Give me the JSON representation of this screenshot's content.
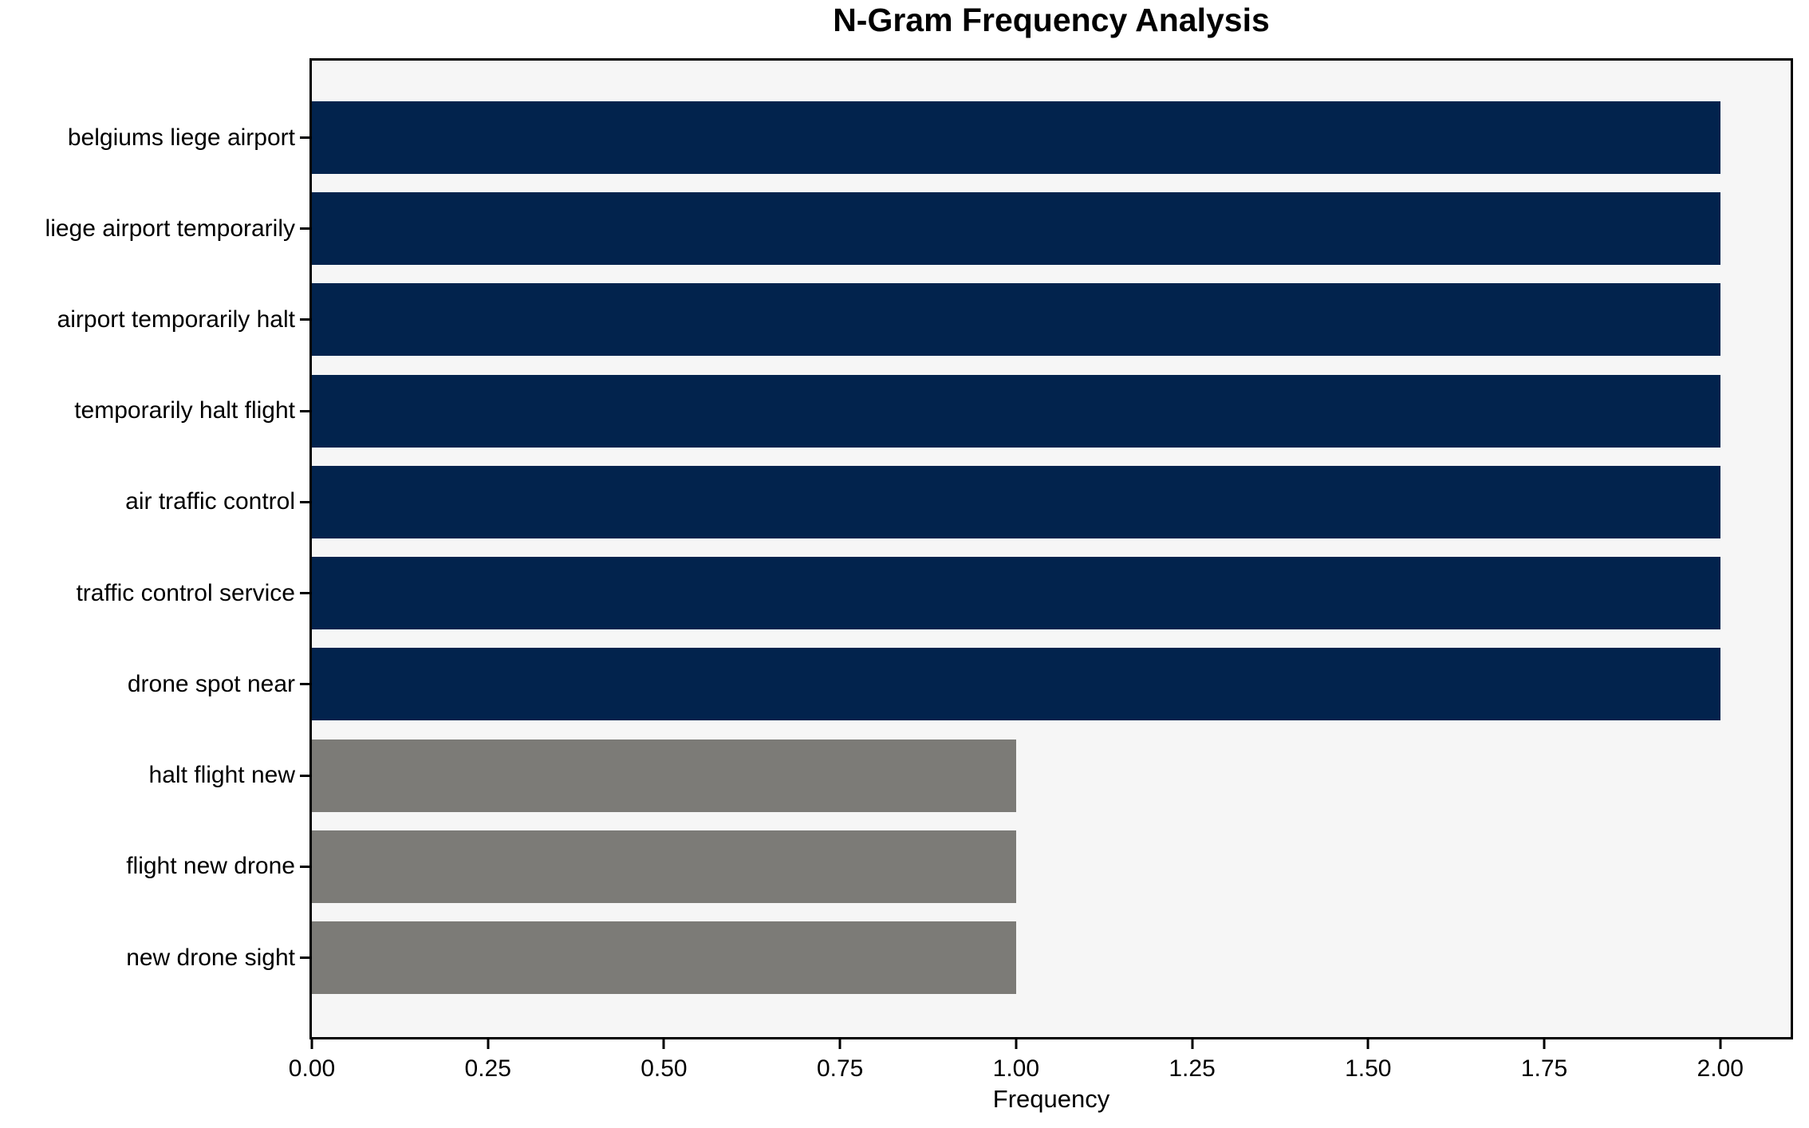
{
  "chart_data": {
    "type": "bar",
    "orientation": "horizontal",
    "title": "N-Gram Frequency Analysis",
    "xlabel": "Frequency",
    "ylabel": "",
    "categories": [
      "belgiums liege airport",
      "liege airport temporarily",
      "airport temporarily halt",
      "temporarily halt flight",
      "air traffic control",
      "traffic control service",
      "drone spot near",
      "halt flight new",
      "flight new drone",
      "new drone sight"
    ],
    "values": [
      2,
      2,
      2,
      2,
      2,
      2,
      2,
      1,
      1,
      1
    ],
    "bar_colors": [
      "#02234d",
      "#02234d",
      "#02234d",
      "#02234d",
      "#02234d",
      "#02234d",
      "#02234d",
      "#7c7b77",
      "#7c7b77",
      "#7c7b77"
    ],
    "xlim": [
      0,
      2.1
    ],
    "xticks": [
      {
        "value": 0.0,
        "label": "0.00"
      },
      {
        "value": 0.25,
        "label": "0.25"
      },
      {
        "value": 0.5,
        "label": "0.50"
      },
      {
        "value": 0.75,
        "label": "0.75"
      },
      {
        "value": 1.0,
        "label": "1.00"
      },
      {
        "value": 1.25,
        "label": "1.25"
      },
      {
        "value": 1.5,
        "label": "1.50"
      },
      {
        "value": 1.75,
        "label": "1.75"
      },
      {
        "value": 2.0,
        "label": "2.00"
      }
    ],
    "grid": false,
    "legend": null,
    "colors": {
      "bar_high": "#02234d",
      "bar_low": "#7c7b77",
      "plot_background": "#f6f6f6",
      "figure_background": "#ffffff",
      "spine": "#000000",
      "text": "#000000"
    }
  }
}
